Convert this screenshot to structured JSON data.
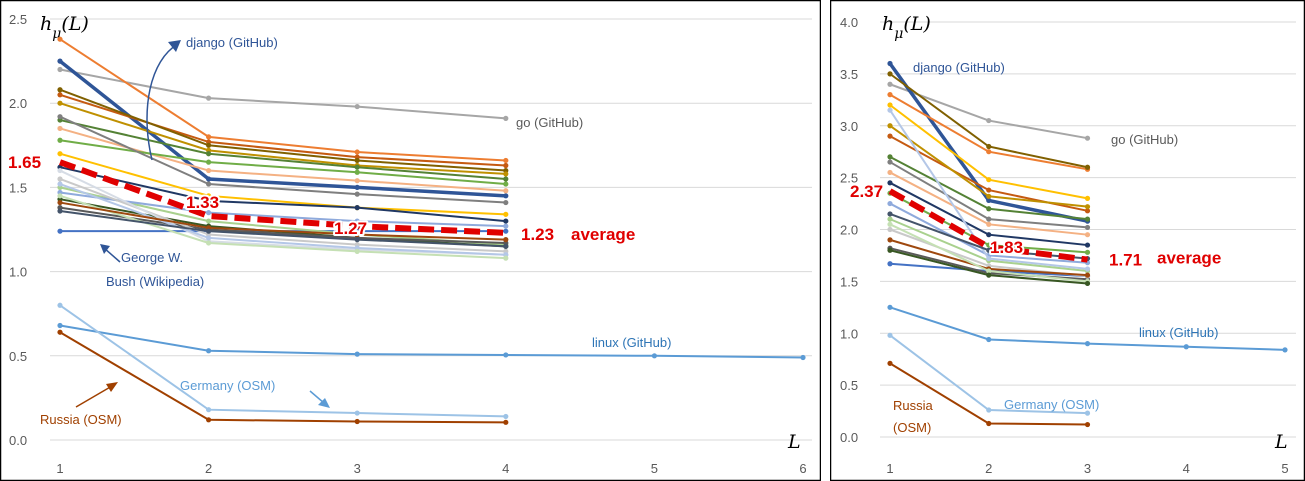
{
  "chart_data": [
    {
      "type": "line",
      "ylabel": "h_μ(L)",
      "xlabel": "L",
      "x_ticks": [
        "1",
        "2",
        "3",
        "4",
        "5",
        "6"
      ],
      "y_ticks": [
        "0.0",
        "0.5",
        "1.0",
        "1.5",
        "2.0",
        "2.5"
      ],
      "xlim": [
        1,
        6
      ],
      "ylim": [
        0,
        2.5
      ],
      "grid": "horizontal",
      "average": {
        "values": [
          1.65,
          1.33,
          1.27,
          1.23
        ],
        "color": "#e00000",
        "labels": [
          "1.65",
          "1.33",
          "1.27",
          "1.23"
        ],
        "tag": "average"
      },
      "annotations": {
        "django": "django (GitHub)",
        "go": "go (GitHub)",
        "bush_line1": "George W.",
        "bush_line2": "Bush (Wikipedia)",
        "linux": "linux (GitHub)",
        "germany": "Germany (OSM)",
        "russia": "Russia (OSM)"
      },
      "series": [
        {
          "name": "go (GitHub)",
          "color": "#a6a6a6",
          "values": [
            2.2,
            2.03,
            1.98,
            1.91
          ]
        },
        {
          "name": "django (GitHub)",
          "color": "#2f5597",
          "values": [
            2.25,
            1.55,
            1.5,
            1.45
          ],
          "thick": true
        },
        {
          "name": "George W. Bush (Wikipedia)",
          "color": "#4472c4",
          "values": [
            1.24,
            1.24,
            1.24,
            1.24
          ]
        },
        {
          "name": "linux (GitHub)",
          "color": "#5b9bd5",
          "values": [
            0.68,
            0.53,
            0.51,
            0.505,
            0.5,
            0.49
          ]
        },
        {
          "name": "Germany (OSM)",
          "color": "#9dc3e6",
          "values": [
            0.8,
            0.18,
            0.16,
            0.14
          ]
        },
        {
          "name": "Russia (OSM)",
          "color": "#a04000",
          "values": [
            0.64,
            0.12,
            0.11,
            0.105
          ]
        },
        {
          "color": "#ed7d31",
          "values": [
            2.38,
            1.8,
            1.71,
            1.66
          ]
        },
        {
          "color": "#c55a11",
          "values": [
            2.05,
            1.77,
            1.68,
            1.63
          ]
        },
        {
          "color": "#806000",
          "values": [
            2.08,
            1.75,
            1.66,
            1.6
          ]
        },
        {
          "color": "#bf9000",
          "values": [
            2.0,
            1.72,
            1.63,
            1.58
          ]
        },
        {
          "color": "#548235",
          "values": [
            1.9,
            1.7,
            1.62,
            1.55
          ]
        },
        {
          "color": "#f4b183",
          "values": [
            1.85,
            1.6,
            1.54,
            1.48
          ]
        },
        {
          "color": "#70ad47",
          "values": [
            1.78,
            1.65,
            1.59,
            1.52
          ]
        },
        {
          "color": "#7f7f7f",
          "values": [
            1.92,
            1.52,
            1.46,
            1.41
          ]
        },
        {
          "color": "#ffc000",
          "values": [
            1.7,
            1.45,
            1.38,
            1.34
          ]
        },
        {
          "color": "#a9d18e",
          "values": [
            1.5,
            1.3,
            1.22,
            1.16
          ]
        },
        {
          "color": "#203864",
          "values": [
            1.62,
            1.42,
            1.38,
            1.3
          ]
        },
        {
          "color": "#8faadc",
          "values": [
            1.47,
            1.35,
            1.3,
            1.27
          ]
        },
        {
          "color": "#385723",
          "values": [
            1.43,
            1.27,
            1.2,
            1.15
          ]
        },
        {
          "color": "#595959",
          "values": [
            1.38,
            1.25,
            1.2,
            1.17
          ]
        },
        {
          "color": "#c9c9c9",
          "values": [
            1.55,
            1.22,
            1.16,
            1.12
          ]
        },
        {
          "color": "#d6dce5",
          "values": [
            1.6,
            1.18,
            1.13,
            1.1
          ]
        },
        {
          "color": "#b4c7e7",
          "values": [
            1.52,
            1.2,
            1.14,
            1.1
          ]
        },
        {
          "color": "#c5e0b4",
          "values": [
            1.45,
            1.17,
            1.12,
            1.08
          ]
        },
        {
          "color": "#9e480e",
          "values": [
            1.41,
            1.26,
            1.22,
            1.19
          ]
        },
        {
          "color": "#44546a",
          "values": [
            1.36,
            1.24,
            1.19,
            1.15
          ]
        }
      ]
    },
    {
      "type": "line",
      "ylabel": "h_μ(L)",
      "xlabel": "L",
      "x_ticks": [
        "1",
        "2",
        "3",
        "4",
        "5"
      ],
      "y_ticks": [
        "0.0",
        "0.5",
        "1.0",
        "1.5",
        "2.0",
        "2.5",
        "3.0",
        "3.5",
        "4.0"
      ],
      "xlim": [
        1,
        5
      ],
      "ylim": [
        0,
        4.0
      ],
      "grid": "horizontal",
      "average": {
        "values": [
          2.37,
          1.83,
          1.71
        ],
        "color": "#e00000",
        "labels": [
          "2.37",
          "1.83",
          "1.71"
        ],
        "tag": "average"
      },
      "annotations": {
        "django": "django (GitHub)",
        "go": "go (GitHub)",
        "linux": "linux (GitHub)",
        "germany": "Germany (OSM)",
        "russia_line1": "Russia",
        "russia_line2": "(OSM)"
      },
      "series": [
        {
          "name": "go (GitHub)",
          "color": "#a6a6a6",
          "values": [
            3.4,
            3.05,
            2.88
          ]
        },
        {
          "name": "django (GitHub)",
          "color": "#2f5597",
          "values": [
            3.6,
            2.28,
            2.08
          ],
          "thick": true
        },
        {
          "name": "linux (GitHub)",
          "color": "#5b9bd5",
          "values": [
            1.25,
            0.94,
            0.9,
            0.87,
            0.84
          ]
        },
        {
          "name": "Germany (OSM)",
          "color": "#9dc3e6",
          "values": [
            0.98,
            0.26,
            0.23
          ]
        },
        {
          "name": "Russia (OSM)",
          "color": "#a04000",
          "values": [
            0.71,
            0.13,
            0.12
          ]
        },
        {
          "color": "#ed7d31",
          "values": [
            3.3,
            2.75,
            2.58
          ]
        },
        {
          "color": "#806000",
          "values": [
            3.5,
            2.8,
            2.6
          ]
        },
        {
          "color": "#ffc000",
          "values": [
            3.2,
            2.48,
            2.3
          ]
        },
        {
          "color": "#c55a11",
          "values": [
            2.9,
            2.38,
            2.18
          ]
        },
        {
          "color": "#bf9000",
          "values": [
            3.0,
            2.32,
            2.22
          ]
        },
        {
          "color": "#548235",
          "values": [
            2.7,
            2.2,
            2.1
          ]
        },
        {
          "color": "#7f7f7f",
          "values": [
            2.65,
            2.1,
            2.02
          ]
        },
        {
          "color": "#f4b183",
          "values": [
            2.55,
            2.05,
            1.95
          ]
        },
        {
          "color": "#203864",
          "values": [
            2.45,
            1.95,
            1.85
          ]
        },
        {
          "color": "#70ad47",
          "values": [
            2.35,
            1.85,
            1.78
          ]
        },
        {
          "color": "#8faadc",
          "values": [
            2.25,
            1.75,
            1.68
          ]
        },
        {
          "color": "#4472c4",
          "values": [
            1.67,
            1.6,
            1.55
          ]
        },
        {
          "color": "#595959",
          "values": [
            1.82,
            1.58,
            1.52
          ]
        },
        {
          "color": "#a9d18e",
          "values": [
            2.1,
            1.7,
            1.6
          ]
        },
        {
          "color": "#c9c9c9",
          "values": [
            2.0,
            1.65,
            1.55
          ]
        },
        {
          "color": "#b4c7e7",
          "values": [
            3.15,
            1.72,
            1.62
          ]
        },
        {
          "color": "#9e480e",
          "values": [
            1.9,
            1.62,
            1.56
          ]
        },
        {
          "color": "#44546a",
          "values": [
            2.15,
            1.8,
            1.72
          ]
        },
        {
          "color": "#c5e0b4",
          "values": [
            2.05,
            1.6,
            1.5
          ]
        },
        {
          "color": "#385723",
          "values": [
            1.8,
            1.56,
            1.48
          ]
        }
      ]
    }
  ]
}
